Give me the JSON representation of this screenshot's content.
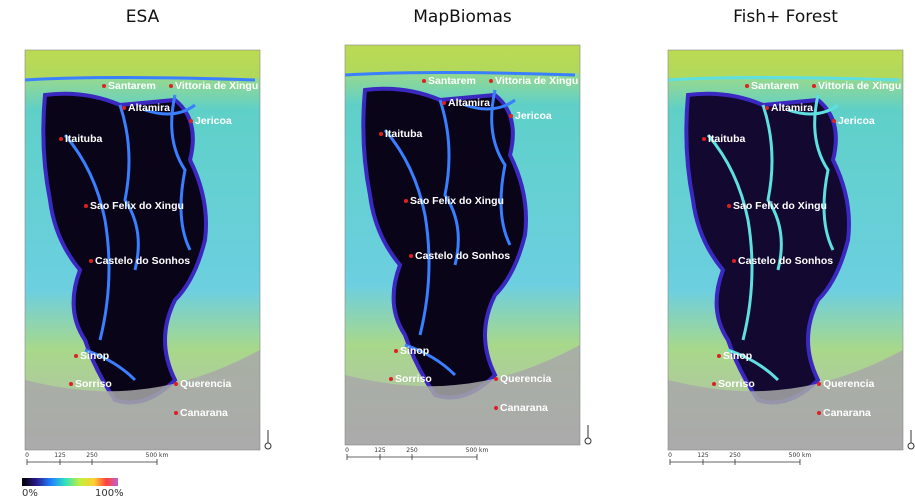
{
  "panels": [
    {
      "title": "ESA",
      "cities": [
        "Santarem",
        "Vittoria de Xingu",
        "Altamira",
        "Jericoa",
        "Itaituba",
        "Sao Felix do Xingu",
        "Castelo do Sonhos",
        "Sinop",
        "Sorriso",
        "Querencia",
        "Canarana"
      ],
      "scale": [
        "0",
        "125",
        "250",
        "500 km"
      ]
    },
    {
      "title": "MapBiomas",
      "cities": [
        "Santarem",
        "Vittoria de Xingu",
        "Altamira",
        "Jericoa",
        "Itaituba",
        "Sao Felix do Xingu",
        "Castelo do Sonhos",
        "Sinop",
        "Sorriso",
        "Querencia",
        "Canarana"
      ],
      "scale": [
        "0",
        "125",
        "250",
        "500 km"
      ]
    },
    {
      "title": "Fish+ Forest",
      "cities": [
        "Santarem",
        "Vittoria de Xingu",
        "Altamira",
        "Jericoa",
        "Itaituba",
        "Sao Felix do Xingu",
        "Castelo do Sonhos",
        "Sinop",
        "Sorriso",
        "Querencia",
        "Canarana"
      ],
      "scale": [
        "0",
        "125",
        "250",
        "500 km"
      ]
    }
  ],
  "legend": {
    "min": "0%",
    "max": "100%"
  }
}
